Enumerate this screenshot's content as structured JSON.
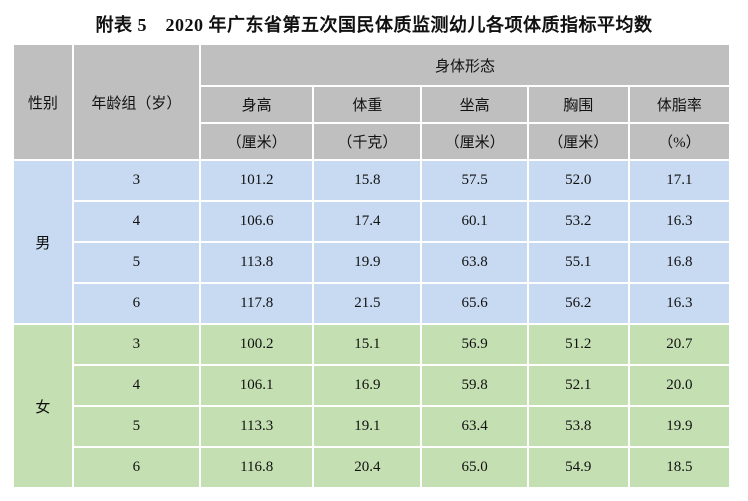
{
  "title": "附表 5　2020 年广东省第五次国民体质监测幼儿各项体质指标平均数",
  "table": {
    "header": {
      "gender": "性别",
      "age_group": "年龄组（岁）",
      "group_title": "身体形态",
      "metrics": [
        {
          "label": "身高",
          "unit": "（厘米）"
        },
        {
          "label": "体重",
          "unit": "（千克）"
        },
        {
          "label": "坐高",
          "unit": "（厘米）"
        },
        {
          "label": "胸围",
          "unit": "（厘米）"
        },
        {
          "label": "体脂率",
          "unit": "（%）"
        }
      ]
    },
    "groups": [
      {
        "gender": "男",
        "rows": [
          {
            "age": "3",
            "values": [
              "101.2",
              "15.8",
              "57.5",
              "52.0",
              "17.1"
            ]
          },
          {
            "age": "4",
            "values": [
              "106.6",
              "17.4",
              "60.1",
              "53.2",
              "16.3"
            ]
          },
          {
            "age": "5",
            "values": [
              "113.8",
              "19.9",
              "63.8",
              "55.1",
              "16.8"
            ]
          },
          {
            "age": "6",
            "values": [
              "117.8",
              "21.5",
              "65.6",
              "56.2",
              "16.3"
            ]
          }
        ]
      },
      {
        "gender": "女",
        "rows": [
          {
            "age": "3",
            "values": [
              "100.2",
              "15.1",
              "56.9",
              "51.2",
              "20.7"
            ]
          },
          {
            "age": "4",
            "values": [
              "106.1",
              "16.9",
              "59.8",
              "52.1",
              "20.0"
            ]
          },
          {
            "age": "5",
            "values": [
              "113.3",
              "19.1",
              "63.4",
              "53.8",
              "19.9"
            ]
          },
          {
            "age": "6",
            "values": [
              "116.8",
              "20.4",
              "65.0",
              "54.9",
              "18.5"
            ]
          }
        ]
      }
    ]
  },
  "colors": {
    "header_bg": "#bfbfbf",
    "male_bg": "#c8daf1",
    "female_bg": "#c4dfb2",
    "text": "#111111"
  }
}
